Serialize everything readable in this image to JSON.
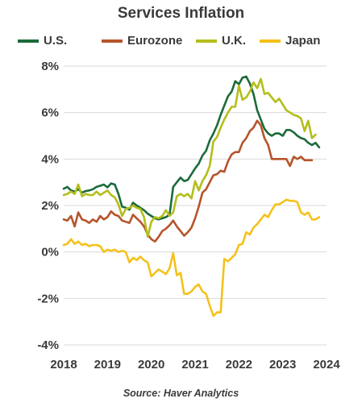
{
  "chart_data": {
    "type": "line",
    "title": "Services Inflation",
    "source": "Source: Haver Analytics",
    "xlabel": "",
    "ylabel": "",
    "xlim": [
      2018,
      2024
    ],
    "ylim": [
      -4,
      8
    ],
    "x_ticks": [
      2018,
      2019,
      2020,
      2021,
      2022,
      2023,
      2024
    ],
    "x_tick_labels": [
      "2018",
      "2019",
      "2020",
      "2021",
      "2022",
      "2023",
      "2024"
    ],
    "y_ticks": [
      -4,
      -2,
      0,
      2,
      4,
      6,
      8
    ],
    "y_tick_labels": [
      "-4%",
      "-2%",
      "0%",
      "2%",
      "4%",
      "6%",
      "8%"
    ],
    "grid": true,
    "legend_position": "top",
    "series": [
      {
        "name": "U.S.",
        "color": "#1b6b3a",
        "points": [
          [
            2018.0,
            2.72
          ],
          [
            2018.083,
            2.8
          ],
          [
            2018.167,
            2.65
          ],
          [
            2018.25,
            2.6
          ],
          [
            2018.333,
            2.7
          ],
          [
            2018.417,
            2.55
          ],
          [
            2018.5,
            2.62
          ],
          [
            2018.583,
            2.65
          ],
          [
            2018.667,
            2.7
          ],
          [
            2018.75,
            2.8
          ],
          [
            2018.833,
            2.85
          ],
          [
            2018.917,
            2.9
          ],
          [
            2019.0,
            2.78
          ],
          [
            2019.083,
            2.95
          ],
          [
            2019.167,
            2.9
          ],
          [
            2019.25,
            2.5
          ],
          [
            2019.333,
            1.95
          ],
          [
            2019.417,
            1.9
          ],
          [
            2019.5,
            1.82
          ],
          [
            2019.583,
            2.12
          ],
          [
            2019.667,
            2.0
          ],
          [
            2019.75,
            1.9
          ],
          [
            2019.833,
            1.8
          ],
          [
            2019.917,
            1.65
          ],
          [
            2020.0,
            1.55
          ],
          [
            2020.083,
            1.45
          ],
          [
            2020.167,
            1.4
          ],
          [
            2020.25,
            1.45
          ],
          [
            2020.333,
            1.5
          ],
          [
            2020.417,
            1.6
          ],
          [
            2020.5,
            2.8
          ],
          [
            2020.583,
            3.0
          ],
          [
            2020.667,
            3.2
          ],
          [
            2020.75,
            3.05
          ],
          [
            2020.833,
            3.1
          ],
          [
            2020.917,
            3.35
          ],
          [
            2021.0,
            3.6
          ],
          [
            2021.083,
            3.8
          ],
          [
            2021.167,
            4.15
          ],
          [
            2021.25,
            4.35
          ],
          [
            2021.333,
            4.8
          ],
          [
            2021.417,
            5.1
          ],
          [
            2021.5,
            5.45
          ],
          [
            2021.583,
            5.9
          ],
          [
            2021.667,
            6.3
          ],
          [
            2021.75,
            6.7
          ],
          [
            2021.833,
            6.9
          ],
          [
            2021.917,
            7.35
          ],
          [
            2022.0,
            7.22
          ],
          [
            2022.083,
            7.5
          ],
          [
            2022.167,
            7.55
          ],
          [
            2022.25,
            7.25
          ],
          [
            2022.333,
            6.8
          ],
          [
            2022.417,
            6.1
          ],
          [
            2022.5,
            5.7
          ],
          [
            2022.583,
            5.3
          ],
          [
            2022.667,
            5.1
          ],
          [
            2022.75,
            5.0
          ],
          [
            2022.833,
            5.1
          ],
          [
            2022.917,
            5.1
          ],
          [
            2023.0,
            5.0
          ],
          [
            2023.083,
            5.25
          ],
          [
            2023.167,
            5.25
          ],
          [
            2023.25,
            5.15
          ],
          [
            2023.333,
            5.0
          ],
          [
            2023.417,
            4.9
          ],
          [
            2023.5,
            4.85
          ],
          [
            2023.583,
            4.7
          ],
          [
            2023.667,
            4.6
          ],
          [
            2023.75,
            4.7
          ],
          [
            2023.833,
            4.5
          ]
        ]
      },
      {
        "name": "Eurozone",
        "color": "#b5542a",
        "points": [
          [
            2018.0,
            1.4
          ],
          [
            2018.083,
            1.35
          ],
          [
            2018.167,
            1.55
          ],
          [
            2018.25,
            1.1
          ],
          [
            2018.333,
            1.7
          ],
          [
            2018.417,
            1.4
          ],
          [
            2018.5,
            1.35
          ],
          [
            2018.583,
            1.25
          ],
          [
            2018.667,
            1.4
          ],
          [
            2018.75,
            1.3
          ],
          [
            2018.833,
            1.55
          ],
          [
            2018.917,
            1.4
          ],
          [
            2019.0,
            1.5
          ],
          [
            2019.083,
            1.75
          ],
          [
            2019.167,
            1.6
          ],
          [
            2019.25,
            1.55
          ],
          [
            2019.333,
            1.35
          ],
          [
            2019.417,
            1.3
          ],
          [
            2019.5,
            1.25
          ],
          [
            2019.583,
            1.6
          ],
          [
            2019.667,
            1.45
          ],
          [
            2019.75,
            1.3
          ],
          [
            2019.833,
            1.1
          ],
          [
            2019.917,
            0.75
          ],
          [
            2020.0,
            0.55
          ],
          [
            2020.083,
            0.45
          ],
          [
            2020.167,
            0.65
          ],
          [
            2020.25,
            0.9
          ],
          [
            2020.333,
            1.0
          ],
          [
            2020.417,
            1.15
          ],
          [
            2020.5,
            1.35
          ],
          [
            2020.583,
            1.1
          ],
          [
            2020.667,
            0.9
          ],
          [
            2020.75,
            0.7
          ],
          [
            2020.833,
            0.85
          ],
          [
            2020.917,
            1.05
          ],
          [
            2021.0,
            1.45
          ],
          [
            2021.083,
            1.95
          ],
          [
            2021.167,
            2.55
          ],
          [
            2021.25,
            2.7
          ],
          [
            2021.333,
            3.0
          ],
          [
            2021.417,
            3.3
          ],
          [
            2021.5,
            3.35
          ],
          [
            2021.583,
            3.5
          ],
          [
            2021.667,
            3.45
          ],
          [
            2021.75,
            3.9
          ],
          [
            2021.833,
            4.2
          ],
          [
            2021.917,
            4.3
          ],
          [
            2022.0,
            4.3
          ],
          [
            2022.083,
            4.7
          ],
          [
            2022.167,
            4.9
          ],
          [
            2022.25,
            5.2
          ],
          [
            2022.333,
            5.35
          ],
          [
            2022.417,
            5.65
          ],
          [
            2022.5,
            5.45
          ],
          [
            2022.583,
            4.9
          ],
          [
            2022.667,
            4.6
          ],
          [
            2022.75,
            4.0
          ],
          [
            2022.833,
            4.0
          ],
          [
            2022.917,
            4.0
          ],
          [
            2023.0,
            4.0
          ],
          [
            2023.083,
            4.0
          ],
          [
            2023.167,
            3.7
          ],
          [
            2023.25,
            4.1
          ],
          [
            2023.333,
            4.0
          ],
          [
            2023.417,
            4.1
          ],
          [
            2023.5,
            3.95
          ],
          [
            2023.583,
            3.95
          ],
          [
            2023.667,
            3.95
          ]
        ]
      },
      {
        "name": "U.K.",
        "color": "#b4be1c",
        "points": [
          [
            2018.0,
            2.45
          ],
          [
            2018.083,
            2.5
          ],
          [
            2018.167,
            2.6
          ],
          [
            2018.25,
            2.5
          ],
          [
            2018.333,
            2.9
          ],
          [
            2018.417,
            2.4
          ],
          [
            2018.5,
            2.5
          ],
          [
            2018.583,
            2.45
          ],
          [
            2018.667,
            2.45
          ],
          [
            2018.75,
            2.6
          ],
          [
            2018.833,
            2.45
          ],
          [
            2018.917,
            2.55
          ],
          [
            2019.0,
            2.65
          ],
          [
            2019.083,
            2.45
          ],
          [
            2019.167,
            2.35
          ],
          [
            2019.25,
            2.05
          ],
          [
            2019.333,
            1.55
          ],
          [
            2019.417,
            1.85
          ],
          [
            2019.5,
            1.9
          ],
          [
            2019.583,
            2.0
          ],
          [
            2019.667,
            1.9
          ],
          [
            2019.75,
            1.85
          ],
          [
            2019.833,
            1.5
          ],
          [
            2019.917,
            0.65
          ],
          [
            2020.0,
            1.3
          ],
          [
            2020.083,
            1.5
          ],
          [
            2020.167,
            1.45
          ],
          [
            2020.25,
            1.55
          ],
          [
            2020.333,
            1.8
          ],
          [
            2020.417,
            1.55
          ],
          [
            2020.5,
            1.7
          ],
          [
            2020.583,
            2.4
          ],
          [
            2020.667,
            2.5
          ],
          [
            2020.75,
            2.4
          ],
          [
            2020.833,
            2.5
          ],
          [
            2020.917,
            2.3
          ],
          [
            2021.0,
            3.05
          ],
          [
            2021.083,
            2.65
          ],
          [
            2021.167,
            3.05
          ],
          [
            2021.25,
            3.3
          ],
          [
            2021.333,
            3.7
          ],
          [
            2021.417,
            4.75
          ],
          [
            2021.5,
            4.95
          ],
          [
            2021.583,
            5.35
          ],
          [
            2021.667,
            5.7
          ],
          [
            2021.75,
            6.0
          ],
          [
            2021.833,
            6.25
          ],
          [
            2021.917,
            6.25
          ],
          [
            2022.0,
            7.15
          ],
          [
            2022.083,
            6.55
          ],
          [
            2022.167,
            6.65
          ],
          [
            2022.25,
            6.9
          ],
          [
            2022.333,
            7.3
          ],
          [
            2022.417,
            7.05
          ],
          [
            2022.5,
            7.45
          ],
          [
            2022.583,
            6.8
          ],
          [
            2022.667,
            6.85
          ],
          [
            2022.75,
            6.65
          ],
          [
            2022.833,
            6.45
          ],
          [
            2022.917,
            6.6
          ],
          [
            2023.0,
            6.35
          ],
          [
            2023.083,
            6.1
          ],
          [
            2023.167,
            6.0
          ],
          [
            2023.25,
            5.9
          ],
          [
            2023.333,
            5.85
          ],
          [
            2023.417,
            5.75
          ],
          [
            2023.5,
            5.2
          ],
          [
            2023.583,
            5.65
          ],
          [
            2023.667,
            4.9
          ],
          [
            2023.75,
            5.05
          ]
        ]
      },
      {
        "name": "Japan",
        "color": "#f5c11b",
        "points": [
          [
            2018.0,
            0.3
          ],
          [
            2018.083,
            0.35
          ],
          [
            2018.167,
            0.55
          ],
          [
            2018.25,
            0.35
          ],
          [
            2018.333,
            0.45
          ],
          [
            2018.417,
            0.3
          ],
          [
            2018.5,
            0.35
          ],
          [
            2018.583,
            0.25
          ],
          [
            2018.667,
            0.3
          ],
          [
            2018.75,
            0.3
          ],
          [
            2018.833,
            0.25
          ],
          [
            2018.917,
            0.0
          ],
          [
            2019.0,
            0.1
          ],
          [
            2019.083,
            0.05
          ],
          [
            2019.167,
            0.1
          ],
          [
            2019.25,
            0.0
          ],
          [
            2019.333,
            0.05
          ],
          [
            2019.417,
            0.0
          ],
          [
            2019.5,
            -0.45
          ],
          [
            2019.583,
            -0.25
          ],
          [
            2019.667,
            -0.35
          ],
          [
            2019.75,
            -0.2
          ],
          [
            2019.833,
            -0.35
          ],
          [
            2019.917,
            -0.45
          ],
          [
            2020.0,
            -1.05
          ],
          [
            2020.083,
            -0.9
          ],
          [
            2020.167,
            -0.75
          ],
          [
            2020.25,
            -0.85
          ],
          [
            2020.333,
            -0.95
          ],
          [
            2020.417,
            -0.7
          ],
          [
            2020.5,
            -0.05
          ],
          [
            2020.583,
            -1.0
          ],
          [
            2020.667,
            -0.9
          ],
          [
            2020.75,
            -1.8
          ],
          [
            2020.833,
            -1.8
          ],
          [
            2020.917,
            -1.7
          ],
          [
            2021.0,
            -1.5
          ],
          [
            2021.083,
            -1.4
          ],
          [
            2021.167,
            -1.7
          ],
          [
            2021.25,
            -1.8
          ],
          [
            2021.333,
            -2.3
          ],
          [
            2021.417,
            -2.75
          ],
          [
            2021.5,
            -2.6
          ],
          [
            2021.583,
            -2.6
          ],
          [
            2021.667,
            -0.3
          ],
          [
            2021.75,
            -0.4
          ],
          [
            2021.833,
            -0.25
          ],
          [
            2021.917,
            -0.1
          ],
          [
            2022.0,
            0.3
          ],
          [
            2022.083,
            0.35
          ],
          [
            2022.167,
            0.85
          ],
          [
            2022.25,
            0.75
          ],
          [
            2022.333,
            1.05
          ],
          [
            2022.417,
            1.2
          ],
          [
            2022.5,
            1.4
          ],
          [
            2022.583,
            1.6
          ],
          [
            2022.667,
            1.5
          ],
          [
            2022.75,
            1.8
          ],
          [
            2022.833,
            2.05
          ],
          [
            2022.917,
            2.05
          ],
          [
            2023.0,
            2.15
          ],
          [
            2023.083,
            2.25
          ],
          [
            2023.167,
            2.2
          ],
          [
            2023.25,
            2.2
          ],
          [
            2023.333,
            2.15
          ],
          [
            2023.417,
            1.7
          ],
          [
            2023.5,
            1.6
          ],
          [
            2023.583,
            1.7
          ],
          [
            2023.667,
            1.4
          ],
          [
            2023.75,
            1.4
          ],
          [
            2023.833,
            1.5
          ]
        ]
      }
    ]
  }
}
